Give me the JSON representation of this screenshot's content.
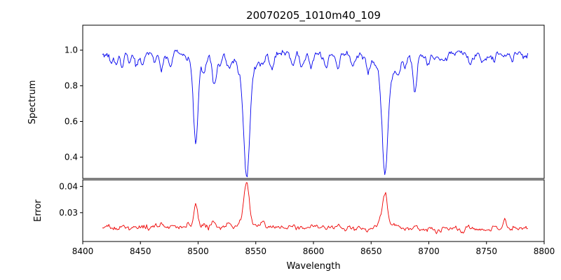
{
  "title": "20070205_1010m40_109",
  "xlabel": "Wavelength",
  "xlim": [
    8400,
    8800
  ],
  "xticks": [
    "8400",
    "8450",
    "8500",
    "8550",
    "8600",
    "8650",
    "8700",
    "8750",
    "8800"
  ],
  "chart_data": [
    {
      "type": "line",
      "name": "spectrum",
      "ylabel": "Spectrum",
      "color": "#0000ee",
      "ylim": [
        0.28,
        1.14
      ],
      "yticks": [
        "0.4",
        "0.6",
        "0.8",
        "1.0"
      ],
      "x_start": 8417,
      "x_end": 8786,
      "x_step": 0.8,
      "baseline": 0.975,
      "wave_amp": 0.006,
      "wave_period": 55,
      "noise_sigma": 0.01,
      "noise_phi": 0.55,
      "seed": 7,
      "feature_sign": -1,
      "features_caw": [
        [
          8498.0,
          0.46,
          1.9
        ],
        [
          8498.0,
          0.05,
          6
        ],
        [
          8542.1,
          0.58,
          2.6
        ],
        [
          8542.1,
          0.11,
          8
        ],
        [
          8662.1,
          0.55,
          2.4
        ],
        [
          8662.1,
          0.11,
          7
        ],
        [
          8424,
          0.05,
          1.5
        ],
        [
          8429,
          0.06,
          1.5
        ],
        [
          8434,
          0.07,
          1.5
        ],
        [
          8441,
          0.05,
          1.5
        ],
        [
          8447,
          0.06,
          1.5
        ],
        [
          8452,
          0.05,
          1.5
        ],
        [
          8462,
          0.05,
          1.5
        ],
        [
          8468,
          0.09,
          1.6
        ],
        [
          8476,
          0.06,
          1.5
        ],
        [
          8505,
          0.08,
          1.5
        ],
        [
          8514,
          0.17,
          1.8
        ],
        [
          8519,
          0.06,
          1.5
        ],
        [
          8527,
          0.07,
          1.5
        ],
        [
          8556,
          0.06,
          1.5
        ],
        [
          8564,
          0.05,
          1.5
        ],
        [
          8582,
          0.06,
          1.5
        ],
        [
          8590,
          0.05,
          1.5
        ],
        [
          8598,
          0.07,
          1.5
        ],
        [
          8611,
          0.06,
          1.5
        ],
        [
          8621,
          0.07,
          1.5
        ],
        [
          8634,
          0.05,
          1.5
        ],
        [
          8648,
          0.05,
          1.5
        ],
        [
          8674,
          0.09,
          1.6
        ],
        [
          8679,
          0.06,
          1.5
        ],
        [
          8688,
          0.21,
          1.8
        ],
        [
          8699,
          0.05,
          1.5
        ],
        [
          8713,
          0.05,
          1.5
        ],
        [
          8736,
          0.06,
          1.5
        ],
        [
          8747,
          0.04,
          1.5
        ],
        [
          8757,
          0.05,
          1.5
        ],
        [
          8772,
          0.04,
          1.5
        ]
      ]
    },
    {
      "type": "line",
      "name": "error",
      "ylabel": "Error",
      "color": "#ee0000",
      "ylim": [
        0.019,
        0.0425
      ],
      "yticks": [
        "0.03",
        "0.04"
      ],
      "x_start": 8417,
      "x_end": 8786,
      "x_step": 0.8,
      "baseline": 0.0242,
      "wave_amp": 0.0004,
      "wave_period": 70,
      "noise_sigma": 0.00045,
      "noise_phi": 0.5,
      "seed": 13,
      "feature_sign": 1,
      "features_caw": [
        [
          8498,
          0.0085,
          1.8
        ],
        [
          8542,
          0.015,
          2.3
        ],
        [
          8542,
          0.002,
          6
        ],
        [
          8662,
          0.012,
          2.1
        ],
        [
          8662,
          0.002,
          6
        ],
        [
          8434,
          0.0012,
          1.4
        ],
        [
          8468,
          0.0012,
          1.4
        ],
        [
          8505,
          0.001,
          1.4
        ],
        [
          8514,
          0.0018,
          1.5
        ],
        [
          8527,
          0.001,
          1.4
        ],
        [
          8556,
          0.001,
          1.4
        ],
        [
          8598,
          0.001,
          1.4
        ],
        [
          8621,
          0.001,
          1.4
        ],
        [
          8674,
          0.0012,
          1.4
        ],
        [
          8688,
          0.0018,
          1.5
        ],
        [
          8713,
          0.001,
          1.4
        ],
        [
          8736,
          0.001,
          1.4
        ],
        [
          8757,
          0.0012,
          1.4
        ],
        [
          8766,
          0.003,
          1.3
        ]
      ]
    }
  ]
}
